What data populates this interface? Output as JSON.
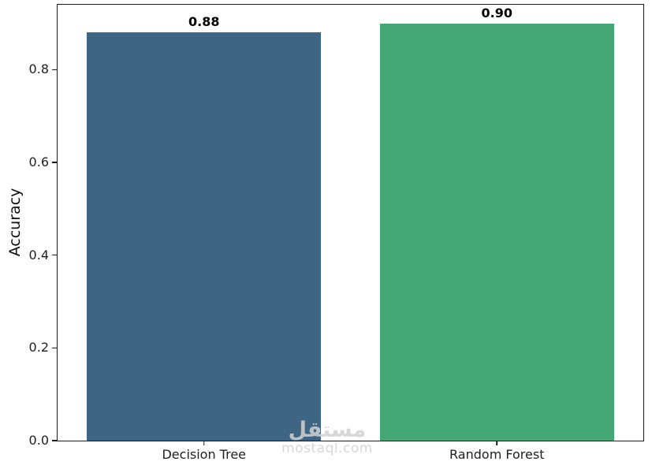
{
  "chart_data": {
    "type": "bar",
    "categories": [
      "Decision Tree",
      "Random Forest"
    ],
    "values": [
      0.88,
      0.9
    ],
    "value_labels": [
      "0.88",
      "0.90"
    ],
    "bar_colors": [
      "#3e6584",
      "#45a776"
    ],
    "title": "",
    "xlabel": "",
    "ylabel": "Accuracy",
    "ylim": [
      0,
      0.94
    ],
    "yticks": [
      0,
      0.2,
      0.4,
      0.6,
      0.8
    ],
    "ytick_labels": [
      "0.0",
      "0.2",
      "0.4",
      "0.6",
      "0.8"
    ],
    "grid": false,
    "legend": "none",
    "axis_color": "#1c1c1c",
    "tick_label_color": "#1f1f1f",
    "bar_band_fraction": 0.8
  },
  "watermark": {
    "logo_text": "مستقل",
    "site_text": "mostaql.com",
    "color": "#d2d2d2"
  }
}
